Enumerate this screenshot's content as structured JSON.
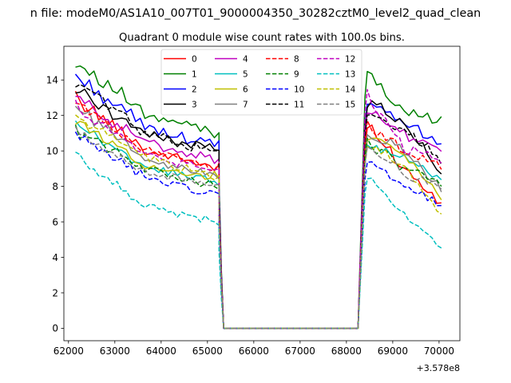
{
  "chart_data": {
    "type": "line",
    "suptitle": "n file: modeM0/AS1A10_007T01_9000004350_30282cztM0_level2_quad_clean",
    "title": "Quadrant 0 module wise count rates with 100.0s bins.",
    "xlabel": "",
    "ylabel": "",
    "offset_label": "+3.578e8",
    "xlim": [
      61900,
      70450
    ],
    "ylim": [
      -0.7,
      15.9
    ],
    "xticks": [
      62000,
      63000,
      64000,
      65000,
      66000,
      67000,
      68000,
      69000,
      70000
    ],
    "xtick_labels": [
      "62000",
      "63000",
      "64000",
      "65000",
      "66000",
      "67000",
      "68000",
      "69000",
      "70000"
    ],
    "yticks": [
      0,
      2,
      4,
      6,
      8,
      10,
      12,
      14
    ],
    "ytick_labels": [
      "0",
      "2",
      "4",
      "6",
      "8",
      "10",
      "12",
      "14"
    ],
    "grid": false,
    "legend_placement": "upper center",
    "legend_columns": 4,
    "segments": [
      {
        "x_start": 62150,
        "x_end": 65200,
        "step": 100
      },
      {
        "x_start": 68450,
        "x_end": 70050,
        "step": 100
      }
    ],
    "gap_rise": [
      {
        "x": 65250,
        "frac": 0.75
      },
      {
        "x": 65300,
        "frac": 0.3
      },
      {
        "x": 65350,
        "frac": 0
      },
      {
        "x": 68250,
        "frac": 0
      },
      {
        "x": 68400,
        "frac": 0.9
      }
    ],
    "series": [
      {
        "name": "0",
        "color": "#ff0000",
        "dash": "solid",
        "seg1": [
          13.0,
          10.0,
          9.0
        ],
        "seg2": [
          11.5,
          9.0,
          7.0
        ]
      },
      {
        "name": "1",
        "color": "#008000",
        "dash": "solid",
        "seg1": [
          15.1,
          12.0,
          11.0
        ],
        "seg2": [
          14.7,
          12.0,
          11.8
        ]
      },
      {
        "name": "2",
        "color": "#0000ff",
        "dash": "solid",
        "seg1": [
          14.2,
          11.3,
          10.3
        ],
        "seg2": [
          12.5,
          11.5,
          10.5
        ]
      },
      {
        "name": "3",
        "color": "#000000",
        "dash": "solid",
        "seg1": [
          13.5,
          11.0,
          10.0
        ],
        "seg2": [
          12.8,
          11.5,
          8.8
        ]
      },
      {
        "name": "4",
        "color": "#bf00bf",
        "dash": "solid",
        "seg1": [
          13.0,
          10.5,
          9.5
        ],
        "seg2": [
          12.2,
          11.0,
          10.0
        ]
      },
      {
        "name": "5",
        "color": "#00bfbf",
        "dash": "solid",
        "seg1": [
          11.5,
          9.0,
          8.3
        ],
        "seg2": [
          10.5,
          9.5,
          8.5
        ]
      },
      {
        "name": "6",
        "color": "#bfbf00",
        "dash": "solid",
        "seg1": [
          11.8,
          9.2,
          8.5
        ],
        "seg2": [
          10.8,
          9.8,
          7.5
        ]
      },
      {
        "name": "7",
        "color": "#808080",
        "dash": "solid",
        "seg1": [
          12.5,
          9.5,
          8.6
        ],
        "seg2": [
          11.0,
          10.0,
          7.8
        ]
      },
      {
        "name": "8",
        "color": "#ff0000",
        "dash": "dashed",
        "seg1": [
          12.8,
          10.0,
          9.0
        ],
        "seg2": [
          11.5,
          10.0,
          9.2
        ]
      },
      {
        "name": "9",
        "color": "#008000",
        "dash": "dashed",
        "seg1": [
          11.2,
          9.0,
          8.0
        ],
        "seg2": [
          10.5,
          9.0,
          8.2
        ]
      },
      {
        "name": "10",
        "color": "#0000ff",
        "dash": "dashed",
        "seg1": [
          10.8,
          8.5,
          7.5
        ],
        "seg2": [
          9.5,
          8.0,
          7.0
        ]
      },
      {
        "name": "11",
        "color": "#000000",
        "dash": "dashed",
        "seg1": [
          13.8,
          11.0,
          9.8
        ],
        "seg2": [
          12.0,
          11.2,
          9.5
        ]
      },
      {
        "name": "12",
        "color": "#bf00bf",
        "dash": "dashed",
        "seg1": [
          12.5,
          9.8,
          8.8
        ],
        "seg2": [
          13.4,
          10.0,
          9.5
        ]
      },
      {
        "name": "13",
        "color": "#00bfbf",
        "dash": "dashed",
        "seg1": [
          9.7,
          6.8,
          6.0
        ],
        "seg2": [
          8.5,
          6.5,
          4.6
        ]
      },
      {
        "name": "14",
        "color": "#bfbf00",
        "dash": "dashed",
        "seg1": [
          12.0,
          9.5,
          8.5
        ],
        "seg2": [
          10.5,
          9.2,
          6.3
        ]
      },
      {
        "name": "15",
        "color": "#808080",
        "dash": "dashed",
        "seg1": [
          11.0,
          8.8,
          8.0
        ],
        "seg2": [
          10.0,
          8.8,
          7.8
        ]
      }
    ]
  }
}
